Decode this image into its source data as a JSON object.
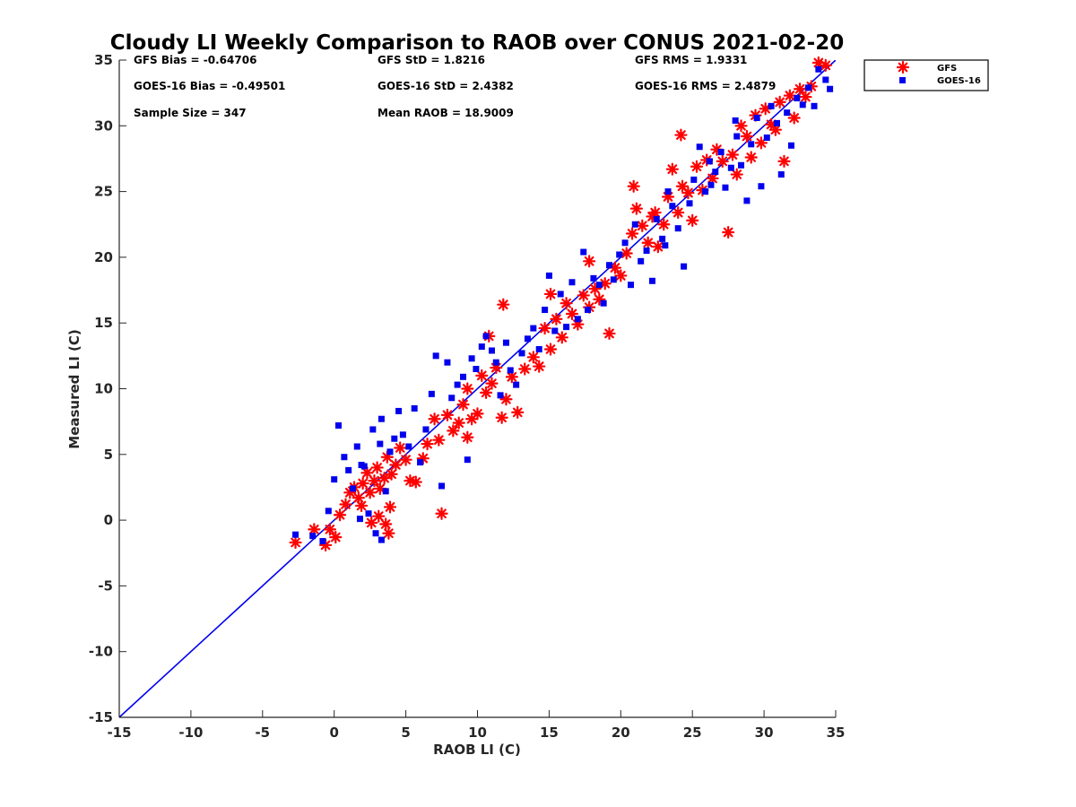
{
  "chart_data": {
    "type": "scatter",
    "title": "Cloudy LI Weekly Comparison to RAOB over CONUS 2021-02-20",
    "xlabel": "RAOB LI (C)",
    "ylabel": "Measured LI (C)",
    "xlim": [
      -15,
      35
    ],
    "ylim": [
      -15,
      35
    ],
    "xticks": [
      "-15",
      "-10",
      "-5",
      "0",
      "5",
      "10",
      "15",
      "20",
      "25",
      "30",
      "35"
    ],
    "yticks": [
      "-15",
      "-10",
      "-5",
      "0",
      "5",
      "10",
      "15",
      "20",
      "25",
      "30",
      "35"
    ],
    "reference_line": {
      "label": "1:1",
      "from": [
        -15,
        -15
      ],
      "to": [
        35,
        35
      ],
      "color": "#0000ee"
    },
    "stats": [
      [
        "GFS Bias = -0.64706",
        "GFS StD = 1.8216",
        "GFS RMS = 1.9331"
      ],
      [
        "GOES-16 Bias = -0.49501",
        "GOES-16 StD = 2.4382",
        "GOES-16 RMS = 2.4879"
      ],
      [
        "Sample Size = 347",
        "Mean RAOB = 18.9009",
        ""
      ]
    ],
    "legend": {
      "position": "outside top-right",
      "entries": [
        "GFS",
        "GOES-16"
      ]
    },
    "series": [
      {
        "name": "GFS",
        "marker": "asterisk",
        "color": "#ff0000",
        "points": [
          [
            -2.7,
            -1.7
          ],
          [
            -1.4,
            -0.7
          ],
          [
            -0.6,
            -1.9
          ],
          [
            -0.3,
            -0.7
          ],
          [
            0.1,
            -1.3
          ],
          [
            0.4,
            0.4
          ],
          [
            0.8,
            1.2
          ],
          [
            1.1,
            2.1
          ],
          [
            1.4,
            2.5
          ],
          [
            1.7,
            1.7
          ],
          [
            2.0,
            2.8
          ],
          [
            2.3,
            3.6
          ],
          [
            2.5,
            2.1
          ],
          [
            2.8,
            3.0
          ],
          [
            3.0,
            4.0
          ],
          [
            3.2,
            2.4
          ],
          [
            3.5,
            3.2
          ],
          [
            3.7,
            4.8
          ],
          [
            4.0,
            3.5
          ],
          [
            4.3,
            4.2
          ],
          [
            2.6,
            -0.2
          ],
          [
            3.1,
            0.3
          ],
          [
            3.6,
            -0.3
          ],
          [
            3.9,
            1.0
          ],
          [
            3.8,
            -1.0
          ],
          [
            1.9,
            1.1
          ],
          [
            4.6,
            5.5
          ],
          [
            5.0,
            4.6
          ],
          [
            5.3,
            3.0
          ],
          [
            5.7,
            2.9
          ],
          [
            6.2,
            4.7
          ],
          [
            6.5,
            5.8
          ],
          [
            7.0,
            7.7
          ],
          [
            7.3,
            6.1
          ],
          [
            7.9,
            8.0
          ],
          [
            8.3,
            6.8
          ],
          [
            8.7,
            7.4
          ],
          [
            9.0,
            8.8
          ],
          [
            9.3,
            6.3
          ],
          [
            9.6,
            7.7
          ],
          [
            10.0,
            8.1
          ],
          [
            10.3,
            11.0
          ],
          [
            10.6,
            9.7
          ],
          [
            11.0,
            10.4
          ],
          [
            11.3,
            11.6
          ],
          [
            11.7,
            7.8
          ],
          [
            12.0,
            9.2
          ],
          [
            12.4,
            10.9
          ],
          [
            12.8,
            8.2
          ],
          [
            13.3,
            11.5
          ],
          [
            13.9,
            12.4
          ],
          [
            14.3,
            11.7
          ],
          [
            14.7,
            14.6
          ],
          [
            15.1,
            13.0
          ],
          [
            15.5,
            15.3
          ],
          [
            15.9,
            13.9
          ],
          [
            16.2,
            16.5
          ],
          [
            16.6,
            15.7
          ],
          [
            17.0,
            14.9
          ],
          [
            17.4,
            17.1
          ],
          [
            17.8,
            16.2
          ],
          [
            18.2,
            17.6
          ],
          [
            18.5,
            16.8
          ],
          [
            18.9,
            18.0
          ],
          [
            19.2,
            14.2
          ],
          [
            19.6,
            19.2
          ],
          [
            20.0,
            18.6
          ],
          [
            20.4,
            20.3
          ],
          [
            20.8,
            21.8
          ],
          [
            21.1,
            23.7
          ],
          [
            21.5,
            22.4
          ],
          [
            21.9,
            21.1
          ],
          [
            22.2,
            23.1
          ],
          [
            22.6,
            20.8
          ],
          [
            23.0,
            22.5
          ],
          [
            23.3,
            24.6
          ],
          [
            23.6,
            26.7
          ],
          [
            24.0,
            23.4
          ],
          [
            24.3,
            25.4
          ],
          [
            24.7,
            24.9
          ],
          [
            25.0,
            22.8
          ],
          [
            25.3,
            26.9
          ],
          [
            25.7,
            25.1
          ],
          [
            26.0,
            27.4
          ],
          [
            26.4,
            26.0
          ],
          [
            26.7,
            28.2
          ],
          [
            27.1,
            27.3
          ],
          [
            27.5,
            21.9
          ],
          [
            27.8,
            27.8
          ],
          [
            28.1,
            26.3
          ],
          [
            28.4,
            30.0
          ],
          [
            28.8,
            29.2
          ],
          [
            29.1,
            27.6
          ],
          [
            29.4,
            30.8
          ],
          [
            29.8,
            28.7
          ],
          [
            30.1,
            31.3
          ],
          [
            30.5,
            30.1
          ],
          [
            30.8,
            29.7
          ],
          [
            31.1,
            31.8
          ],
          [
            31.4,
            27.3
          ],
          [
            31.8,
            32.3
          ],
          [
            32.1,
            30.6
          ],
          [
            32.5,
            32.8
          ],
          [
            32.9,
            32.2
          ],
          [
            33.3,
            33.0
          ],
          [
            33.8,
            34.8
          ],
          [
            34.3,
            34.6
          ],
          [
            20.9,
            25.4
          ],
          [
            24.2,
            29.3
          ],
          [
            9.3,
            10.0
          ],
          [
            7.5,
            0.5
          ],
          [
            11.8,
            16.4
          ],
          [
            10.8,
            14.0
          ],
          [
            17.8,
            19.7
          ],
          [
            22.4,
            23.4
          ],
          [
            15.1,
            17.2
          ]
        ]
      },
      {
        "name": "GOES-16",
        "marker": "square",
        "color": "#0000ee",
        "points": [
          [
            -2.7,
            -1.1
          ],
          [
            -1.5,
            -1.2
          ],
          [
            -0.8,
            -1.6
          ],
          [
            -0.4,
            0.7
          ],
          [
            0.0,
            3.1
          ],
          [
            0.3,
            7.2
          ],
          [
            0.7,
            4.8
          ],
          [
            1.0,
            3.8
          ],
          [
            1.3,
            2.4
          ],
          [
            1.6,
            5.6
          ],
          [
            1.8,
            0.1
          ],
          [
            2.1,
            4.1
          ],
          [
            2.4,
            0.5
          ],
          [
            2.7,
            6.9
          ],
          [
            2.9,
            -1.0
          ],
          [
            3.2,
            5.8
          ],
          [
            3.3,
            7.7
          ],
          [
            3.6,
            2.2
          ],
          [
            3.9,
            5.2
          ],
          [
            4.2,
            6.2
          ],
          [
            3.3,
            -1.5
          ],
          [
            1.9,
            4.2
          ],
          [
            4.5,
            8.3
          ],
          [
            4.8,
            6.5
          ],
          [
            5.2,
            5.6
          ],
          [
            5.6,
            8.5
          ],
          [
            6.0,
            4.4
          ],
          [
            6.4,
            6.9
          ],
          [
            6.8,
            9.6
          ],
          [
            7.1,
            12.5
          ],
          [
            7.5,
            2.6
          ],
          [
            7.9,
            12.0
          ],
          [
            8.2,
            9.3
          ],
          [
            8.6,
            10.3
          ],
          [
            9.0,
            10.9
          ],
          [
            9.3,
            4.6
          ],
          [
            9.6,
            12.3
          ],
          [
            9.9,
            11.5
          ],
          [
            10.3,
            13.2
          ],
          [
            10.6,
            14.0
          ],
          [
            11.0,
            12.9
          ],
          [
            11.3,
            12.0
          ],
          [
            11.6,
            9.5
          ],
          [
            12.0,
            13.5
          ],
          [
            12.3,
            11.4
          ],
          [
            12.7,
            10.3
          ],
          [
            13.1,
            12.7
          ],
          [
            13.5,
            13.8
          ],
          [
            13.9,
            14.6
          ],
          [
            14.3,
            13.0
          ],
          [
            14.7,
            16.0
          ],
          [
            15.0,
            18.6
          ],
          [
            15.4,
            14.4
          ],
          [
            15.8,
            17.2
          ],
          [
            16.2,
            14.7
          ],
          [
            16.6,
            18.1
          ],
          [
            17.0,
            15.3
          ],
          [
            17.4,
            20.4
          ],
          [
            17.7,
            16.0
          ],
          [
            18.1,
            18.4
          ],
          [
            18.5,
            17.9
          ],
          [
            18.8,
            16.5
          ],
          [
            19.2,
            19.4
          ],
          [
            19.5,
            18.3
          ],
          [
            19.9,
            20.2
          ],
          [
            20.3,
            21.1
          ],
          [
            20.7,
            17.9
          ],
          [
            21.0,
            22.5
          ],
          [
            21.4,
            19.7
          ],
          [
            21.8,
            20.5
          ],
          [
            22.2,
            18.2
          ],
          [
            22.5,
            22.9
          ],
          [
            22.9,
            21.4
          ],
          [
            23.3,
            25.0
          ],
          [
            23.6,
            23.9
          ],
          [
            24.0,
            22.2
          ],
          [
            24.4,
            19.3
          ],
          [
            24.8,
            24.1
          ],
          [
            25.1,
            25.9
          ],
          [
            25.5,
            28.4
          ],
          [
            25.9,
            25.0
          ],
          [
            26.2,
            27.3
          ],
          [
            26.6,
            26.5
          ],
          [
            27.0,
            28.0
          ],
          [
            27.3,
            25.3
          ],
          [
            27.7,
            26.8
          ],
          [
            28.1,
            29.2
          ],
          [
            28.4,
            27.0
          ],
          [
            28.8,
            24.3
          ],
          [
            29.1,
            28.6
          ],
          [
            29.5,
            30.6
          ],
          [
            29.8,
            25.4
          ],
          [
            30.2,
            29.1
          ],
          [
            30.5,
            31.5
          ],
          [
            30.9,
            30.2
          ],
          [
            31.2,
            26.3
          ],
          [
            31.6,
            31.0
          ],
          [
            31.9,
            28.5
          ],
          [
            32.3,
            32.1
          ],
          [
            32.7,
            31.6
          ],
          [
            33.1,
            32.9
          ],
          [
            33.5,
            31.5
          ],
          [
            33.8,
            34.3
          ],
          [
            34.3,
            33.5
          ],
          [
            34.6,
            32.8
          ],
          [
            28.0,
            30.4
          ],
          [
            23.1,
            20.9
          ],
          [
            26.3,
            25.5
          ]
        ]
      }
    ]
  }
}
